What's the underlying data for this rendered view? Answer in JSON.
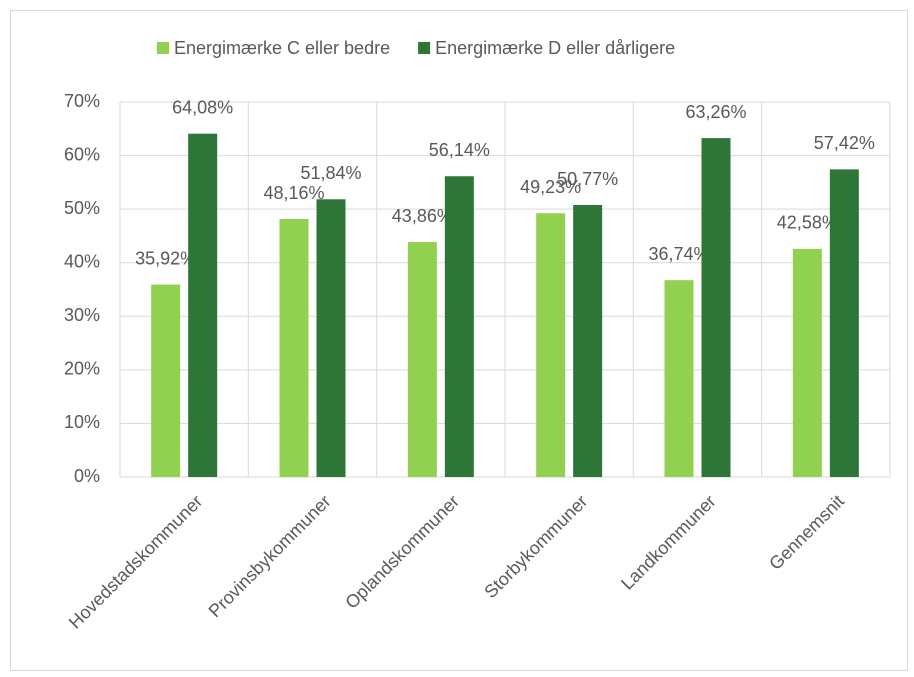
{
  "chart_data": {
    "type": "bar",
    "categories": [
      "Hovedstadskommuner",
      "Provinsbykommuner",
      "Oplandskommuner",
      "Storbykommuner",
      "Landkommuner",
      "Gennemsnit"
    ],
    "series": [
      {
        "name": "Energimærke C eller bedre",
        "color": "#92d050",
        "values": [
          35.92,
          48.16,
          43.86,
          49.23,
          36.74,
          42.58
        ],
        "value_labels": [
          "35,92%",
          "48,16%",
          "43,86%",
          "49,23%",
          "36,74%",
          "42,58%"
        ]
      },
      {
        "name": "Energimærke D eller dårligere",
        "color": "#2e7538",
        "values": [
          64.08,
          51.84,
          56.14,
          50.77,
          63.26,
          57.42
        ],
        "value_labels": [
          "64,08%",
          "51,84%",
          "56,14%",
          "50,77%",
          "63,26%",
          "57,42%"
        ]
      }
    ],
    "ylim": [
      0,
      70
    ],
    "yticks": [
      {
        "value": 0,
        "label": "0%"
      },
      {
        "value": 10,
        "label": "10%"
      },
      {
        "value": 20,
        "label": "20%"
      },
      {
        "value": 30,
        "label": "30%"
      },
      {
        "value": 40,
        "label": "40%"
      },
      {
        "value": 50,
        "label": "50%"
      },
      {
        "value": 60,
        "label": "60%"
      },
      {
        "value": 70,
        "label": "70%"
      }
    ],
    "grid": true,
    "legend": "top"
  }
}
